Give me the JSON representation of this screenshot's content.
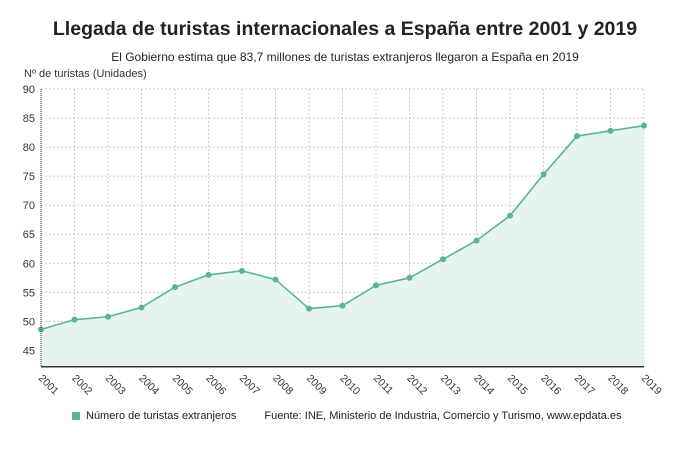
{
  "title": "Llegada de turistas internacionales a España entre 2001 y 2019",
  "subtitle": "El Gobierno estima que 83,7 millones de turistas extranjeros llegaron a España en 2019",
  "source": "Fuente: INE, Ministerio de Industria, Comercio y Turismo, www.epdata.es",
  "chart_data": {
    "type": "area",
    "ylabel": "Nº de turistas (Unidades)",
    "ylim": [
      42.2,
      90
    ],
    "yticks": [
      45,
      50,
      55,
      60,
      65,
      70,
      75,
      80,
      85,
      90
    ],
    "grid": true,
    "legend_placement": "bottom-left",
    "color": "#5bb395",
    "x": [
      "2001",
      "2002",
      "2003",
      "2004",
      "2005",
      "2006",
      "2007",
      "2008",
      "2009",
      "2010",
      "2011",
      "2012",
      "2013",
      "2014",
      "2015",
      "2016",
      "2017",
      "2018",
      "2019"
    ],
    "series": [
      {
        "name": "Número de turistas extranjeros",
        "values": [
          48.6,
          50.3,
          50.8,
          52.4,
          55.9,
          58.0,
          58.7,
          57.2,
          52.2,
          52.7,
          56.2,
          57.5,
          60.7,
          63.9,
          68.2,
          75.3,
          81.9,
          82.8,
          83.7
        ]
      }
    ]
  }
}
